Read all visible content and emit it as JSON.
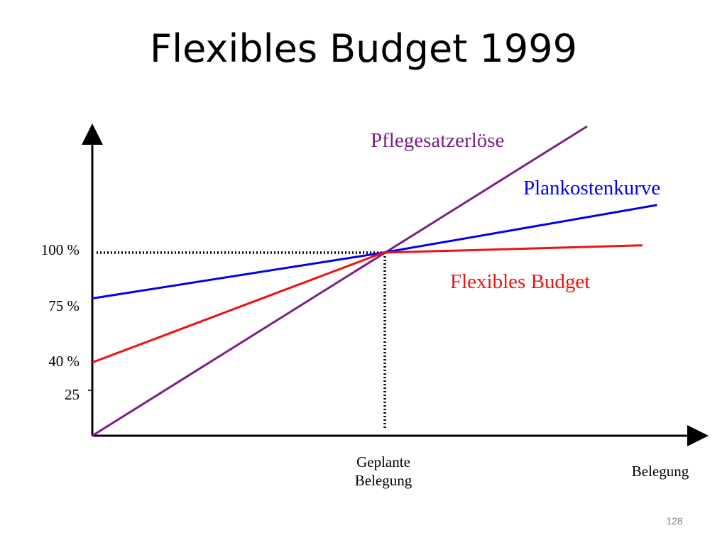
{
  "slide": {
    "title": "Flexibles Budget 1999",
    "page_number": "128"
  },
  "chart_data": {
    "type": "line",
    "title": "Flexibles Budget 1999",
    "xlabel": "Belegung",
    "ylabel": "",
    "x_tick_labels": [
      "Geplante",
      "Belegung"
    ],
    "y_tick_labels": [
      {
        "value": 100,
        "label": "100 %"
      },
      {
        "value": 75,
        "label": "75 %"
      },
      {
        "value": 40,
        "label": "40 %"
      },
      {
        "value": 25,
        "label": "25"
      }
    ],
    "reference": {
      "planned_occupancy": 100,
      "planned_value": 100
    },
    "xlim": [
      0,
      187
    ],
    "ylim": [
      0,
      170
    ],
    "legend": "inline labels",
    "grid": false,
    "series": [
      {
        "name": "Pflegesatzerlöse",
        "color": "#7b1f86",
        "x": [
          0,
          170
        ],
        "y": [
          0,
          169
        ]
      },
      {
        "name": "Plankostenkurve",
        "color": "#0000ee",
        "x": [
          0,
          100,
          194
        ],
        "y": [
          75,
          100,
          126
        ]
      },
      {
        "name": "Flexibles Budget",
        "color": "#ee1111",
        "x": [
          0,
          100,
          189
        ],
        "y": [
          40,
          100,
          104
        ]
      }
    ]
  }
}
